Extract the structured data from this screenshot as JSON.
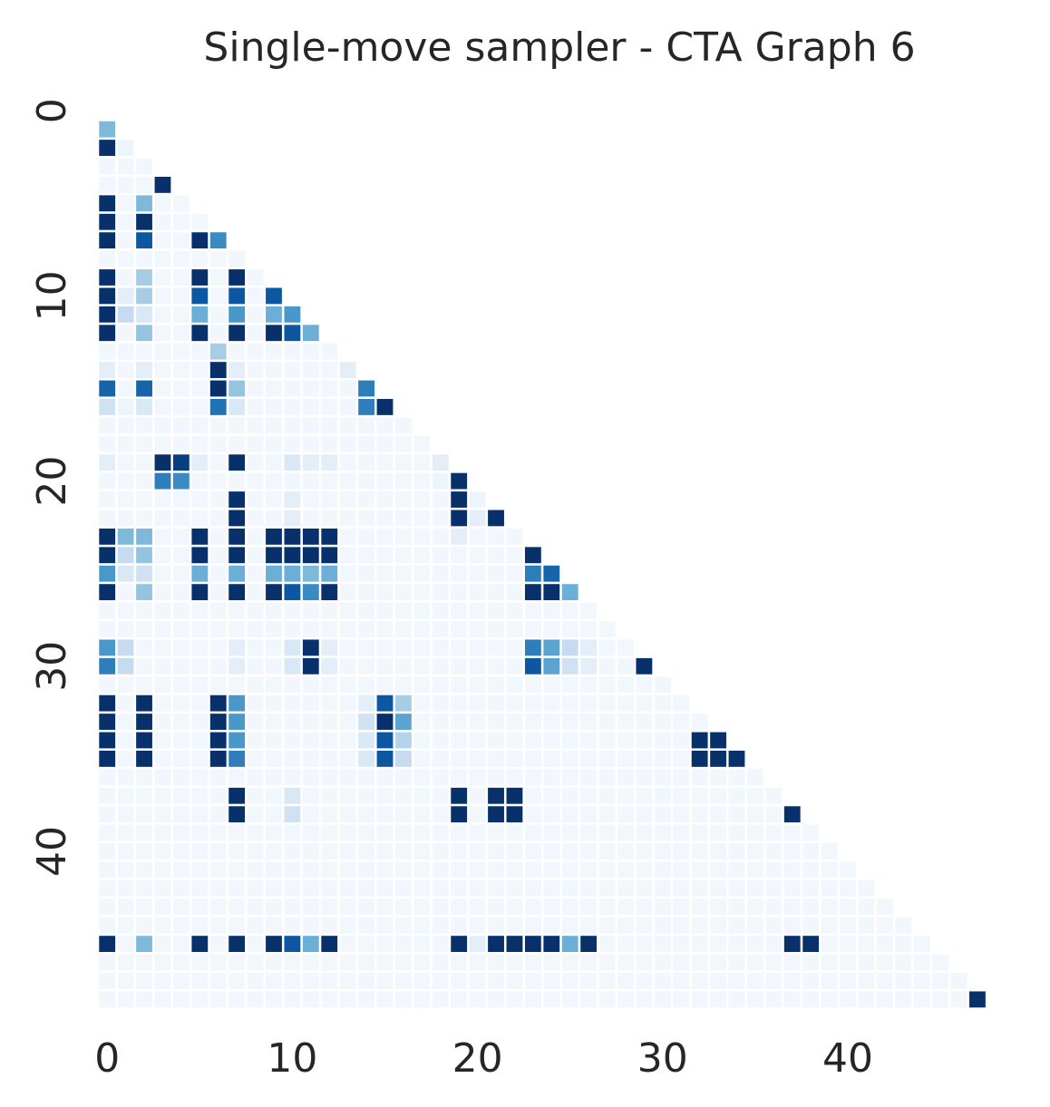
{
  "chart_data": {
    "type": "heatmap",
    "title": "Single-move sampler - CTA Graph 6",
    "xlabel": "",
    "ylabel": "",
    "n": 49,
    "mask": "upper-triangle",
    "value_range": [
      0,
      1
    ],
    "colormap": "Blues",
    "colorbar": false,
    "grid": false,
    "x_ticks": [
      0,
      10,
      20,
      30,
      40
    ],
    "y_ticks": [
      0,
      10,
      20,
      30,
      40
    ],
    "x_tick_labels": [
      "0",
      "10",
      "20",
      "30",
      "40"
    ],
    "y_tick_labels": [
      "0",
      "10",
      "20",
      "30",
      "40"
    ],
    "background_value": 0.03,
    "values": [
      [
        1,
        0,
        0.45
      ],
      [
        2,
        0,
        1.0
      ],
      [
        2,
        1,
        0.05
      ],
      [
        4,
        3,
        1.0
      ],
      [
        5,
        0,
        1.0
      ],
      [
        5,
        2,
        0.45
      ],
      [
        6,
        0,
        1.0
      ],
      [
        6,
        2,
        1.0
      ],
      [
        7,
        0,
        1.0
      ],
      [
        7,
        2,
        0.85
      ],
      [
        7,
        5,
        1.0
      ],
      [
        7,
        6,
        0.65
      ],
      [
        9,
        0,
        1.0
      ],
      [
        9,
        2,
        0.35
      ],
      [
        9,
        5,
        1.0
      ],
      [
        9,
        7,
        1.0
      ],
      [
        10,
        0,
        1.0
      ],
      [
        10,
        1,
        0.1
      ],
      [
        10,
        2,
        0.35
      ],
      [
        10,
        5,
        0.85
      ],
      [
        10,
        7,
        0.85
      ],
      [
        10,
        9,
        0.85
      ],
      [
        11,
        0,
        1.0
      ],
      [
        11,
        1,
        0.25
      ],
      [
        11,
        2,
        0.15
      ],
      [
        11,
        5,
        0.5
      ],
      [
        11,
        7,
        0.6
      ],
      [
        11,
        9,
        0.5
      ],
      [
        11,
        10,
        0.6
      ],
      [
        12,
        0,
        1.0
      ],
      [
        12,
        2,
        0.4
      ],
      [
        12,
        5,
        1.0
      ],
      [
        12,
        7,
        1.0
      ],
      [
        12,
        9,
        1.0
      ],
      [
        12,
        10,
        0.85
      ],
      [
        12,
        11,
        0.5
      ],
      [
        13,
        6,
        0.35
      ],
      [
        14,
        0,
        0.1
      ],
      [
        14,
        2,
        0.1
      ],
      [
        14,
        6,
        1.0
      ],
      [
        14,
        7,
        0.1
      ],
      [
        14,
        13,
        0.1
      ],
      [
        15,
        0,
        0.8
      ],
      [
        15,
        2,
        0.8
      ],
      [
        15,
        6,
        1.0
      ],
      [
        15,
        7,
        0.4
      ],
      [
        15,
        14,
        0.7
      ],
      [
        16,
        0,
        0.2
      ],
      [
        16,
        1,
        0.05
      ],
      [
        16,
        2,
        0.15
      ],
      [
        16,
        6,
        0.75
      ],
      [
        16,
        7,
        0.15
      ],
      [
        16,
        14,
        0.7
      ],
      [
        16,
        15,
        1.0
      ],
      [
        19,
        0,
        0.1
      ],
      [
        19,
        3,
        1.0
      ],
      [
        19,
        4,
        0.95
      ],
      [
        19,
        5,
        0.1
      ],
      [
        19,
        7,
        1.0
      ],
      [
        19,
        10,
        0.15
      ],
      [
        19,
        11,
        0.1
      ],
      [
        19,
        12,
        0.1
      ],
      [
        19,
        18,
        0.1
      ],
      [
        20,
        3,
        0.7
      ],
      [
        20,
        4,
        0.65
      ],
      [
        20,
        18,
        0.05
      ],
      [
        20,
        19,
        1.0
      ],
      [
        21,
        7,
        1.0
      ],
      [
        21,
        10,
        0.1
      ],
      [
        21,
        19,
        1.0
      ],
      [
        21,
        20,
        0.05
      ],
      [
        22,
        7,
        1.0
      ],
      [
        22,
        10,
        0.1
      ],
      [
        22,
        19,
        1.0
      ],
      [
        22,
        20,
        0.1
      ],
      [
        22,
        21,
        1.0
      ],
      [
        23,
        0,
        1.0
      ],
      [
        23,
        1,
        0.45
      ],
      [
        23,
        2,
        0.45
      ],
      [
        23,
        5,
        1.0
      ],
      [
        23,
        7,
        1.0
      ],
      [
        23,
        9,
        1.0
      ],
      [
        23,
        10,
        1.0
      ],
      [
        23,
        11,
        1.0
      ],
      [
        23,
        12,
        1.0
      ],
      [
        23,
        19,
        0.1
      ],
      [
        24,
        0,
        1.0
      ],
      [
        24,
        1,
        0.25
      ],
      [
        24,
        2,
        0.4
      ],
      [
        24,
        5,
        1.0
      ],
      [
        24,
        7,
        1.0
      ],
      [
        24,
        9,
        1.0
      ],
      [
        24,
        10,
        1.0
      ],
      [
        24,
        11,
        1.0
      ],
      [
        24,
        12,
        1.0
      ],
      [
        24,
        23,
        1.0
      ],
      [
        25,
        0,
        0.6
      ],
      [
        25,
        1,
        0.15
      ],
      [
        25,
        2,
        0.2
      ],
      [
        25,
        5,
        0.5
      ],
      [
        25,
        7,
        0.5
      ],
      [
        25,
        9,
        0.5
      ],
      [
        25,
        10,
        0.5
      ],
      [
        25,
        11,
        0.45
      ],
      [
        25,
        12,
        0.5
      ],
      [
        25,
        23,
        0.7
      ],
      [
        25,
        24,
        0.8
      ],
      [
        26,
        0,
        1.0
      ],
      [
        26,
        2,
        0.4
      ],
      [
        26,
        5,
        1.0
      ],
      [
        26,
        7,
        1.0
      ],
      [
        26,
        9,
        1.0
      ],
      [
        26,
        10,
        0.85
      ],
      [
        26,
        11,
        0.65
      ],
      [
        26,
        12,
        1.0
      ],
      [
        26,
        23,
        1.0
      ],
      [
        26,
        24,
        1.0
      ],
      [
        26,
        25,
        0.5
      ],
      [
        29,
        0,
        0.6
      ],
      [
        29,
        1,
        0.25
      ],
      [
        29,
        7,
        0.1
      ],
      [
        29,
        10,
        0.15
      ],
      [
        29,
        11,
        1.0
      ],
      [
        29,
        12,
        0.1
      ],
      [
        29,
        23,
        0.7
      ],
      [
        29,
        24,
        0.55
      ],
      [
        29,
        25,
        0.25
      ],
      [
        29,
        26,
        0.1
      ],
      [
        30,
        0,
        0.7
      ],
      [
        30,
        1,
        0.25
      ],
      [
        30,
        7,
        0.1
      ],
      [
        30,
        10,
        0.15
      ],
      [
        30,
        11,
        1.0
      ],
      [
        30,
        12,
        0.1
      ],
      [
        30,
        23,
        0.85
      ],
      [
        30,
        24,
        0.55
      ],
      [
        30,
        25,
        0.2
      ],
      [
        30,
        26,
        0.1
      ],
      [
        30,
        29,
        1.0
      ],
      [
        32,
        0,
        1.0
      ],
      [
        32,
        2,
        1.0
      ],
      [
        32,
        6,
        1.0
      ],
      [
        32,
        7,
        0.6
      ],
      [
        32,
        14,
        0.1
      ],
      [
        32,
        15,
        0.85
      ],
      [
        32,
        16,
        0.35
      ],
      [
        33,
        0,
        1.0
      ],
      [
        33,
        2,
        1.0
      ],
      [
        33,
        6,
        1.0
      ],
      [
        33,
        7,
        0.6
      ],
      [
        33,
        14,
        0.2
      ],
      [
        33,
        15,
        1.0
      ],
      [
        33,
        16,
        0.55
      ],
      [
        34,
        0,
        1.0
      ],
      [
        34,
        2,
        1.0
      ],
      [
        34,
        6,
        1.0
      ],
      [
        34,
        7,
        0.6
      ],
      [
        34,
        14,
        0.15
      ],
      [
        34,
        15,
        0.85
      ],
      [
        34,
        16,
        0.3
      ],
      [
        34,
        32,
        1.0
      ],
      [
        34,
        33,
        1.0
      ],
      [
        35,
        0,
        1.0
      ],
      [
        35,
        2,
        1.0
      ],
      [
        35,
        6,
        1.0
      ],
      [
        35,
        7,
        0.7
      ],
      [
        35,
        14,
        0.15
      ],
      [
        35,
        15,
        0.85
      ],
      [
        35,
        16,
        0.25
      ],
      [
        35,
        32,
        1.0
      ],
      [
        35,
        33,
        1.0
      ],
      [
        35,
        34,
        1.0
      ],
      [
        37,
        7,
        1.0
      ],
      [
        37,
        10,
        0.15
      ],
      [
        37,
        19,
        1.0
      ],
      [
        37,
        21,
        1.0
      ],
      [
        37,
        22,
        1.0
      ],
      [
        38,
        7,
        1.0
      ],
      [
        38,
        10,
        0.2
      ],
      [
        38,
        19,
        1.0
      ],
      [
        38,
        21,
        1.0
      ],
      [
        38,
        22,
        1.0
      ],
      [
        38,
        37,
        1.0
      ],
      [
        45,
        0,
        1.0
      ],
      [
        45,
        2,
        0.45
      ],
      [
        45,
        5,
        1.0
      ],
      [
        45,
        7,
        1.0
      ],
      [
        45,
        9,
        1.0
      ],
      [
        45,
        10,
        0.85
      ],
      [
        45,
        11,
        0.5
      ],
      [
        45,
        12,
        1.0
      ],
      [
        45,
        19,
        1.0
      ],
      [
        45,
        20,
        0.1
      ],
      [
        45,
        21,
        1.0
      ],
      [
        45,
        22,
        1.0
      ],
      [
        45,
        23,
        1.0
      ],
      [
        45,
        24,
        1.0
      ],
      [
        45,
        25,
        0.5
      ],
      [
        45,
        26,
        1.0
      ],
      [
        45,
        37,
        1.0
      ],
      [
        45,
        38,
        1.0
      ],
      [
        48,
        47,
        1.0
      ]
    ]
  }
}
